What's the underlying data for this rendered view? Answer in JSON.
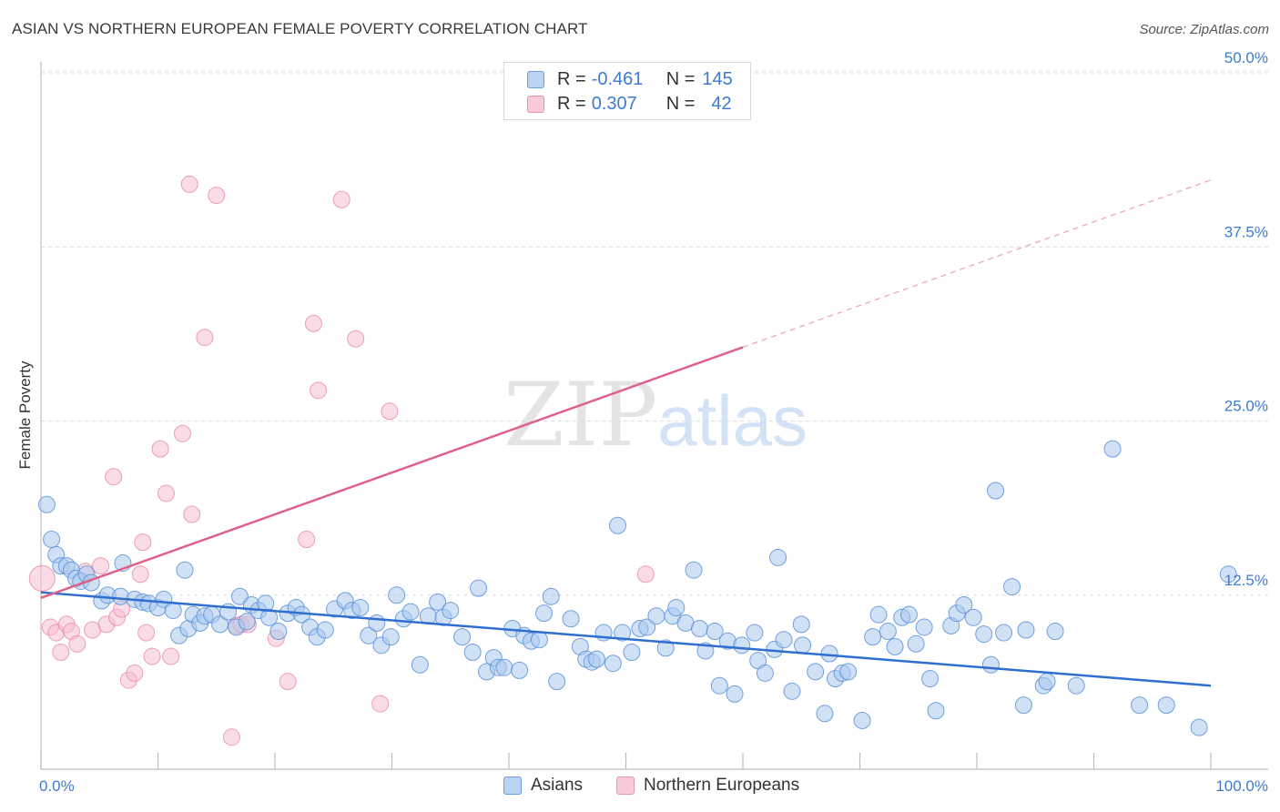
{
  "title": "ASIAN VS NORTHERN EUROPEAN FEMALE POVERTY CORRELATION CHART",
  "source": "Source: ZipAtlas.com",
  "watermark": {
    "zip": "ZIP",
    "atlas": "atlas"
  },
  "colors": {
    "asian_fill": "#a9c8ef",
    "asian_stroke": "#5b92d8",
    "asian_line": "#2f6fd0",
    "ne_fill": "#f6bfd0",
    "ne_stroke": "#e68aa8",
    "ne_line": "#e0608a",
    "accent_text": "#3d7bd1"
  },
  "legend": {
    "rows": [
      {
        "r_label": "R = ",
        "r_value": "-0.461",
        "n_label": "N = ",
        "n_value": "145"
      },
      {
        "r_label": "R = ",
        "r_value": "0.307",
        "n_label": "N = ",
        "n_value": "42"
      }
    ]
  },
  "bottom_legend": {
    "asians": "Asians",
    "northern_europeans": "Northern Europeans"
  },
  "chart_data": {
    "type": "scatter",
    "title": "ASIAN VS NORTHERN EUROPEAN FEMALE POVERTY CORRELATION CHART",
    "xlabel": "",
    "ylabel": "Female Poverty",
    "xlim": [
      0,
      100
    ],
    "ylim": [
      0,
      50
    ],
    "x_tick_labels": [
      "0.0%",
      "100.0%"
    ],
    "y_tick_labels": [
      "12.5%",
      "25.0%",
      "37.5%",
      "50.0%"
    ],
    "y_ticks": [
      12.5,
      25.0,
      37.5,
      50.0
    ],
    "grid": "horizontal dashed",
    "legend_position": "top-center",
    "series": [
      {
        "name": "Asians",
        "r": -0.461,
        "n": 145,
        "trend": {
          "x": [
            0,
            100
          ],
          "y": [
            12.7,
            6.0
          ]
        },
        "points": [
          [
            0.5,
            19.0
          ],
          [
            0.9,
            16.5
          ],
          [
            1.3,
            15.4
          ],
          [
            1.7,
            14.6
          ],
          [
            2.2,
            14.6
          ],
          [
            2.6,
            14.3
          ],
          [
            3.0,
            13.7
          ],
          [
            3.4,
            13.5
          ],
          [
            3.9,
            14.0
          ],
          [
            4.3,
            13.4
          ],
          [
            5.2,
            12.1
          ],
          [
            5.7,
            12.5
          ],
          [
            6.8,
            12.4
          ],
          [
            7.0,
            14.8
          ],
          [
            8.0,
            12.2
          ],
          [
            8.7,
            12.0
          ],
          [
            9.2,
            11.9
          ],
          [
            10.0,
            11.6
          ],
          [
            10.5,
            12.2
          ],
          [
            11.3,
            11.4
          ],
          [
            11.8,
            9.6
          ],
          [
            12.3,
            14.3
          ],
          [
            12.6,
            10.1
          ],
          [
            13.0,
            11.1
          ],
          [
            13.6,
            10.5
          ],
          [
            14.0,
            11.0
          ],
          [
            14.6,
            11.1
          ],
          [
            15.3,
            10.4
          ],
          [
            16.0,
            11.3
          ],
          [
            16.7,
            10.2
          ],
          [
            17.0,
            12.4
          ],
          [
            17.6,
            10.6
          ],
          [
            18.0,
            11.8
          ],
          [
            18.6,
            11.4
          ],
          [
            19.2,
            11.9
          ],
          [
            19.5,
            10.9
          ],
          [
            20.3,
            9.9
          ],
          [
            21.1,
            11.2
          ],
          [
            21.8,
            11.6
          ],
          [
            22.3,
            11.1
          ],
          [
            23.0,
            10.2
          ],
          [
            23.6,
            9.5
          ],
          [
            24.3,
            10.0
          ],
          [
            25.1,
            11.5
          ],
          [
            26.0,
            12.1
          ],
          [
            26.6,
            11.4
          ],
          [
            27.3,
            11.6
          ],
          [
            28.0,
            9.6
          ],
          [
            28.7,
            10.5
          ],
          [
            29.1,
            8.9
          ],
          [
            29.9,
            9.5
          ],
          [
            30.4,
            12.5
          ],
          [
            31.0,
            10.8
          ],
          [
            31.6,
            11.3
          ],
          [
            32.4,
            7.5
          ],
          [
            33.1,
            11.0
          ],
          [
            33.9,
            12.0
          ],
          [
            34.4,
            10.9
          ],
          [
            35.0,
            11.4
          ],
          [
            36.0,
            9.5
          ],
          [
            36.9,
            8.4
          ],
          [
            37.4,
            13.0
          ],
          [
            38.1,
            7.0
          ],
          [
            38.7,
            8.0
          ],
          [
            39.1,
            7.3
          ],
          [
            39.6,
            7.3
          ],
          [
            40.3,
            10.1
          ],
          [
            40.9,
            7.1
          ],
          [
            41.3,
            9.6
          ],
          [
            41.9,
            9.2
          ],
          [
            42.6,
            9.3
          ],
          [
            43.0,
            11.2
          ],
          [
            43.6,
            12.4
          ],
          [
            44.1,
            6.3
          ],
          [
            45.3,
            10.8
          ],
          [
            46.1,
            8.8
          ],
          [
            46.6,
            7.9
          ],
          [
            47.1,
            7.7
          ],
          [
            47.5,
            7.9
          ],
          [
            48.1,
            9.8
          ],
          [
            48.9,
            7.6
          ],
          [
            49.3,
            17.5
          ],
          [
            49.7,
            9.8
          ],
          [
            50.5,
            8.4
          ],
          [
            51.2,
            10.1
          ],
          [
            51.8,
            10.2
          ],
          [
            52.6,
            11.0
          ],
          [
            53.4,
            8.7
          ],
          [
            54.0,
            11.0
          ],
          [
            54.3,
            11.6
          ],
          [
            55.1,
            10.5
          ],
          [
            55.8,
            14.3
          ],
          [
            56.3,
            10.1
          ],
          [
            56.8,
            8.5
          ],
          [
            57.6,
            9.9
          ],
          [
            58.0,
            6.0
          ],
          [
            58.7,
            9.2
          ],
          [
            59.3,
            5.4
          ],
          [
            59.9,
            8.9
          ],
          [
            61.0,
            9.8
          ],
          [
            61.3,
            7.8
          ],
          [
            61.9,
            6.9
          ],
          [
            62.7,
            8.6
          ],
          [
            63.0,
            15.2
          ],
          [
            63.5,
            9.3
          ],
          [
            64.2,
            5.6
          ],
          [
            65.0,
            10.4
          ],
          [
            65.1,
            8.9
          ],
          [
            66.2,
            7.0
          ],
          [
            67.0,
            4.0
          ],
          [
            67.4,
            8.3
          ],
          [
            67.9,
            6.5
          ],
          [
            68.5,
            6.9
          ],
          [
            69.0,
            7.0
          ],
          [
            70.2,
            3.5
          ],
          [
            71.1,
            9.5
          ],
          [
            71.6,
            11.1
          ],
          [
            72.4,
            9.9
          ],
          [
            73.0,
            8.8
          ],
          [
            73.6,
            10.9
          ],
          [
            74.2,
            11.1
          ],
          [
            74.8,
            9.0
          ],
          [
            75.5,
            10.2
          ],
          [
            76.0,
            6.5
          ],
          [
            76.5,
            4.2
          ],
          [
            77.8,
            10.3
          ],
          [
            78.3,
            11.2
          ],
          [
            78.9,
            11.8
          ],
          [
            79.7,
            10.9
          ],
          [
            80.6,
            9.7
          ],
          [
            81.2,
            7.5
          ],
          [
            81.6,
            20.0
          ],
          [
            82.3,
            9.8
          ],
          [
            83.0,
            13.1
          ],
          [
            84.0,
            4.6
          ],
          [
            84.2,
            10.0
          ],
          [
            85.7,
            6.0
          ],
          [
            86.0,
            6.3
          ],
          [
            86.7,
            9.9
          ],
          [
            88.5,
            6.0
          ],
          [
            91.6,
            23.0
          ],
          [
            93.9,
            4.6
          ],
          [
            96.2,
            4.6
          ],
          [
            99.0,
            3.0
          ],
          [
            101.5,
            14.0
          ]
        ]
      },
      {
        "name": "Northern Europeans",
        "r": 0.307,
        "n": 42,
        "trend": {
          "x": [
            0,
            60
          ],
          "y": [
            12.3,
            30.3
          ]
        },
        "trend_dashed": {
          "x": [
            60,
            100
          ],
          "y": [
            30.3,
            42.3
          ]
        },
        "points": [
          [
            0.1,
            13.7
          ],
          [
            0.8,
            10.2
          ],
          [
            1.3,
            9.8
          ],
          [
            1.7,
            8.4
          ],
          [
            2.2,
            10.4
          ],
          [
            2.6,
            9.9
          ],
          [
            3.1,
            9.0
          ],
          [
            3.8,
            14.2
          ],
          [
            4.4,
            10.0
          ],
          [
            5.1,
            14.6
          ],
          [
            5.6,
            10.4
          ],
          [
            6.2,
            21.0
          ],
          [
            6.5,
            10.9
          ],
          [
            6.9,
            11.5
          ],
          [
            7.5,
            6.4
          ],
          [
            8.0,
            6.9
          ],
          [
            8.5,
            14.0
          ],
          [
            8.7,
            16.3
          ],
          [
            9.0,
            9.8
          ],
          [
            9.5,
            8.1
          ],
          [
            10.2,
            23.0
          ],
          [
            10.7,
            19.8
          ],
          [
            11.1,
            8.1
          ],
          [
            12.1,
            24.1
          ],
          [
            12.7,
            42.0
          ],
          [
            12.9,
            18.3
          ],
          [
            14.0,
            31.0
          ],
          [
            15.0,
            41.2
          ],
          [
            16.3,
            2.3
          ],
          [
            16.7,
            10.3
          ],
          [
            17.1,
            10.4
          ],
          [
            17.7,
            10.4
          ],
          [
            20.1,
            9.4
          ],
          [
            21.1,
            6.3
          ],
          [
            22.7,
            16.5
          ],
          [
            23.3,
            32.0
          ],
          [
            23.7,
            27.2
          ],
          [
            25.7,
            40.9
          ],
          [
            26.9,
            30.9
          ],
          [
            29.0,
            4.7
          ],
          [
            29.8,
            25.7
          ],
          [
            51.7,
            14.0
          ]
        ]
      }
    ]
  }
}
